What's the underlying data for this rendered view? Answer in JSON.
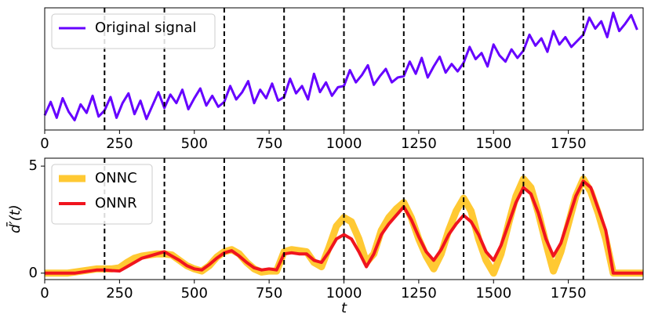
{
  "chart_data": [
    {
      "type": "line",
      "x": [
        0,
        20,
        40,
        60,
        80,
        100,
        120,
        140,
        160,
        180,
        200,
        220,
        240,
        260,
        280,
        300,
        320,
        340,
        360,
        380,
        400,
        420,
        440,
        460,
        480,
        500,
        520,
        540,
        560,
        580,
        600,
        620,
        640,
        660,
        680,
        700,
        720,
        740,
        760,
        780,
        800,
        820,
        840,
        860,
        880,
        900,
        920,
        940,
        960,
        980,
        1000,
        1020,
        1040,
        1060,
        1080,
        1100,
        1120,
        1140,
        1160,
        1180,
        1200,
        1220,
        1240,
        1260,
        1280,
        1300,
        1320,
        1340,
        1360,
        1380,
        1400,
        1420,
        1440,
        1460,
        1480,
        1500,
        1520,
        1540,
        1560,
        1580,
        1600,
        1620,
        1640,
        1660,
        1680,
        1700,
        1720,
        1740,
        1760,
        1780,
        1800,
        1820,
        1840,
        1860,
        1880,
        1900,
        1920,
        1940,
        1960,
        1980
      ],
      "series": [
        {
          "name": "Original signal",
          "color": "#6600ff",
          "values": [
            1.2,
            2.3,
            1.0,
            2.6,
            1.5,
            0.8,
            2.1,
            1.4,
            2.8,
            1.1,
            1.6,
            2.7,
            1.0,
            2.2,
            3.0,
            1.3,
            2.4,
            0.9,
            2.0,
            3.1,
            1.8,
            2.9,
            2.2,
            3.3,
            1.7,
            2.6,
            3.4,
            2.0,
            2.8,
            1.9,
            2.3,
            3.6,
            2.5,
            3.1,
            4.0,
            2.2,
            3.3,
            2.6,
            3.8,
            2.4,
            2.7,
            4.2,
            3.0,
            3.6,
            2.5,
            4.6,
            3.1,
            3.9,
            2.8,
            3.5,
            3.6,
            4.9,
            3.9,
            4.5,
            5.3,
            3.7,
            4.4,
            5.0,
            3.9,
            4.3,
            4.4,
            5.6,
            4.6,
            5.9,
            4.3,
            5.2,
            6.0,
            4.7,
            5.4,
            4.8,
            5.5,
            6.8,
            5.8,
            6.3,
            5.2,
            7.0,
            6.1,
            5.6,
            6.6,
            5.9,
            6.5,
            7.8,
            6.9,
            7.5,
            6.4,
            8.1,
            7.0,
            7.6,
            6.8,
            7.3,
            7.8,
            9.2,
            8.3,
            8.9,
            7.6,
            9.6,
            8.1,
            8.7,
            9.4,
            8.2
          ]
        }
      ],
      "xlim": [
        0,
        2000
      ],
      "xticks": [
        0,
        250,
        500,
        750,
        1000,
        1250,
        1500,
        1750
      ],
      "ylim": [
        0,
        10
      ],
      "vlines": [
        200,
        400,
        600,
        800,
        1000,
        1200,
        1400,
        1600,
        1800
      ]
    },
    {
      "type": "line",
      "x": [
        0,
        25,
        50,
        75,
        100,
        125,
        150,
        175,
        200,
        225,
        250,
        275,
        300,
        325,
        350,
        375,
        400,
        425,
        450,
        475,
        500,
        525,
        550,
        575,
        600,
        625,
        650,
        675,
        700,
        725,
        750,
        775,
        800,
        825,
        850,
        875,
        900,
        925,
        950,
        975,
        1000,
        1025,
        1050,
        1075,
        1100,
        1125,
        1150,
        1175,
        1200,
        1225,
        1250,
        1275,
        1300,
        1325,
        1350,
        1375,
        1400,
        1425,
        1450,
        1475,
        1500,
        1525,
        1550,
        1575,
        1600,
        1625,
        1650,
        1675,
        1700,
        1725,
        1750,
        1775,
        1800,
        1825,
        1850,
        1875,
        1900,
        1925,
        1950,
        1975,
        2000
      ],
      "series": [
        {
          "name": "ONNC",
          "color": "#ffc933",
          "values": [
            0,
            0,
            0,
            0,
            0.05,
            0.1,
            0.15,
            0.2,
            0.2,
            0.2,
            0.25,
            0.5,
            0.7,
            0.8,
            0.85,
            0.9,
            0.9,
            0.85,
            0.6,
            0.35,
            0.2,
            0.1,
            0.35,
            0.75,
            1.0,
            1.1,
            0.9,
            0.5,
            0.2,
            0.05,
            0.1,
            0.1,
            1.0,
            1.1,
            1.05,
            1.0,
            0.5,
            0.3,
            1.2,
            2.2,
            2.6,
            2.4,
            1.6,
            0.5,
            0.9,
            2.0,
            2.6,
            3.0,
            3.3,
            2.6,
            1.6,
            0.8,
            0.2,
            0.9,
            2.0,
            2.9,
            3.5,
            2.9,
            1.6,
            0.6,
            0.0,
            0.9,
            2.3,
            3.6,
            4.4,
            4.0,
            2.8,
            1.4,
            0.1,
            1.0,
            2.3,
            3.6,
            4.4,
            3.8,
            2.8,
            1.6,
            0.0,
            0.0,
            0.0,
            0.0,
            0.0
          ]
        },
        {
          "name": "ONNR",
          "color": "#f0141e",
          "values": [
            0,
            0,
            0,
            0,
            0,
            0.05,
            0.1,
            0.15,
            0.15,
            0.12,
            0.1,
            0.3,
            0.5,
            0.7,
            0.8,
            0.9,
            1.0,
            0.8,
            0.6,
            0.35,
            0.2,
            0.15,
            0.4,
            0.7,
            0.95,
            1.05,
            0.8,
            0.5,
            0.25,
            0.15,
            0.2,
            0.15,
            0.9,
            0.95,
            0.9,
            0.9,
            0.6,
            0.5,
            1.0,
            1.6,
            1.8,
            1.6,
            1.0,
            0.3,
            0.9,
            1.8,
            2.3,
            2.7,
            3.1,
            2.5,
            1.7,
            1.0,
            0.6,
            1.1,
            1.8,
            2.3,
            2.7,
            2.4,
            1.8,
            1.0,
            0.6,
            1.3,
            2.3,
            3.3,
            4.0,
            3.7,
            2.8,
            1.6,
            0.8,
            1.4,
            2.5,
            3.6,
            4.3,
            4.0,
            3.0,
            2.0,
            0.0,
            0.0,
            0.0,
            0.0,
            0.0
          ]
        }
      ],
      "xlim": [
        0,
        2000
      ],
      "xticks": [
        0,
        250,
        500,
        750,
        1000,
        1250,
        1500,
        1750
      ],
      "ylim": [
        -0.3,
        5.37
      ],
      "yticks": [
        0,
        5
      ],
      "xlabel": "t",
      "ylabel": "d̄′(t)",
      "vlines": [
        200,
        400,
        600,
        800,
        1000,
        1200,
        1400,
        1600,
        1800
      ]
    }
  ]
}
